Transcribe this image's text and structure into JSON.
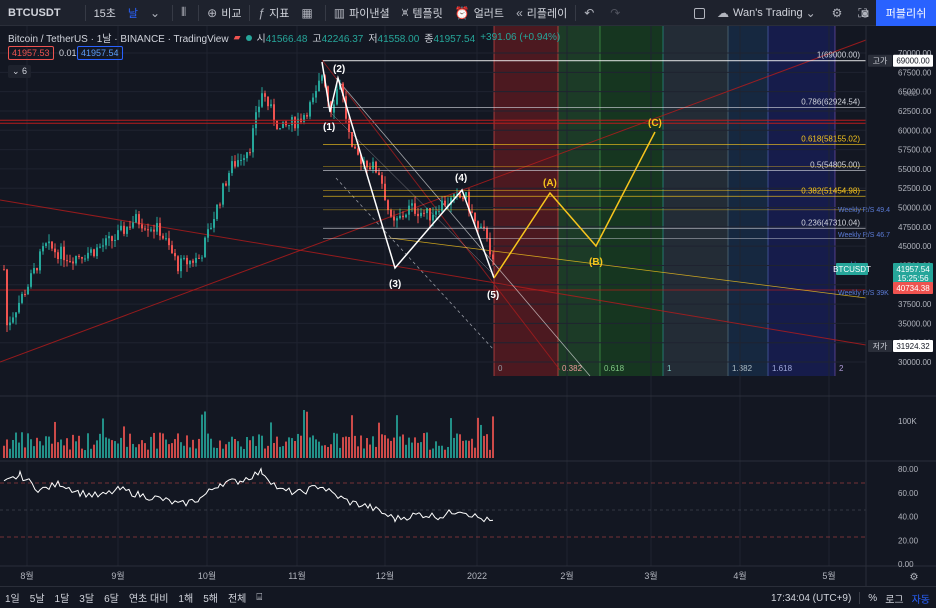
{
  "toolbar": {
    "symbol": "BTCUSDT",
    "interval": "15초",
    "timeframe": "날",
    "compare_label": "비교",
    "indicators_label": "지표",
    "layout_label": "파이낸셜",
    "templates_label": "템플릿",
    "alert_label": "얼러트",
    "replay_label": "리플레이",
    "layout_name": "Wan's Trading",
    "publish_label": "퍼블리쉬"
  },
  "legend": {
    "title": "Bitcoin / TetherUS · 1날 · BINANCE · TradingView",
    "open_label": "시",
    "open": "41566.48",
    "high_label": "고",
    "high": "42246.37",
    "low_label": "저",
    "low": "41558.00",
    "close_label": "종",
    "close": "41957.54",
    "change": "+391.06 (+0.94%)",
    "sell_price": "41957.53",
    "spread": "0.01",
    "buy_price": "41957.54",
    "collapsed_count": "6"
  },
  "price_axis": {
    "labels": [
      "70000.00",
      "67500.00",
      "65000.00",
      "62500.00",
      "60000.00",
      "57500.00",
      "55000.00",
      "52500.00",
      "50000.00",
      "47500.00",
      "45000.00",
      "42500.00",
      "37500.00",
      "35000.00",
      "32500.00",
      "30000.00"
    ],
    "currency": "USD",
    "high_tag": "고가",
    "high_value": "69000.00",
    "symbol_tag": "BTCUSDT",
    "last_price": "41957.54",
    "countdown": "15:25:56",
    "red_level": "40734.38",
    "low_tag": "저가",
    "low_value": "31924.32"
  },
  "fib_levels": [
    {
      "label": "1(69000.00)",
      "price": 69000,
      "color": "#d1d4dc"
    },
    {
      "label": "0.786(62924.54)",
      "price": 62924.54,
      "color": "#d1d4dc"
    },
    {
      "label": "0.618(58155.02)",
      "price": 58155.02,
      "color": "#f7c51d"
    },
    {
      "label": "0.5(54805.00)",
      "price": 54805,
      "color": "#d1d4dc"
    },
    {
      "label": "0.382(51454.98)",
      "price": 51454.98,
      "color": "#f7c51d"
    },
    {
      "label": "0.236(47310.04)",
      "price": 47310.04,
      "color": "#d1d4dc"
    }
  ],
  "weekly_labels": [
    {
      "text": "Weekly R/S 49.4",
      "price": 49400
    },
    {
      "text": "Weekly R/S 46.7",
      "price": 46200
    },
    {
      "text": "weekly",
      "price": 42300
    },
    {
      "text": "Weekly R/S 39K",
      "price": 38700
    }
  ],
  "fib_time_labels": [
    "0",
    "0.382",
    "0.618",
    "1",
    "1.382",
    "1.618",
    "2"
  ],
  "wave_labels": {
    "w1": "(1)",
    "w2": "(2)",
    "w3": "(3)",
    "w4": "(4)",
    "w5": "(5)",
    "wa": "(A)",
    "wb": "(B)",
    "wc": "(C)"
  },
  "volume_axis": {
    "label": "100K"
  },
  "rsi_axis": {
    "labels": [
      "80.00",
      "60.00",
      "40.00",
      "20.00",
      "0.00"
    ]
  },
  "time_axis": {
    "labels": [
      "8월",
      "9월",
      "10월",
      "11월",
      "12월",
      "2022",
      "2월",
      "3월",
      "4월",
      "5월"
    ]
  },
  "bottom": {
    "ranges": [
      "1일",
      "5날",
      "1달",
      "3달",
      "6달",
      "연초 대비",
      "1해",
      "5해",
      "전체"
    ],
    "clock": "17:34:04 (UTC+9)",
    "percent": "%",
    "log": "로그",
    "auto": "자동"
  },
  "colors": {
    "bull": "#26a69a",
    "bear": "#ef5350",
    "wave_white": "#ffffff",
    "wave_yellow": "#f7c51d",
    "accent": "#2962ff"
  }
}
